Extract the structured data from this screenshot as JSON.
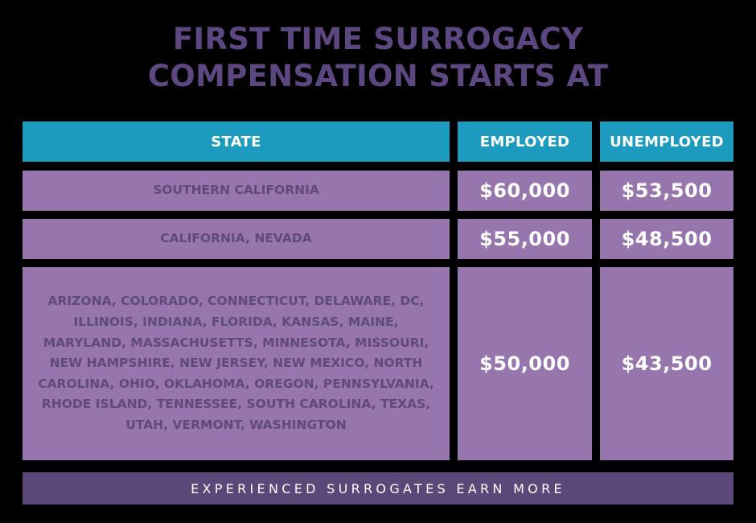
{
  "title": {
    "line1": "FIRST TIME SURROGACY",
    "line2": "COMPENSATION STARTS AT"
  },
  "table": {
    "headers": [
      "STATE",
      "EMPLOYED",
      "UNEMPLOYED"
    ],
    "rows": [
      {
        "state": "SOUTHERN CALIFORNIA",
        "employed": "$60,000",
        "unemployed": "$53,500"
      },
      {
        "state": "CALIFORNIA, NEVADA",
        "employed": "$55,000",
        "unemployed": "$48,500"
      },
      {
        "state": "ARIZONA, COLORADO, CONNECTICUT, DELAWARE, DC, ILLINOIS, INDIANA, FLORIDA, KANSAS, MAINE, MARYLAND, MASSACHUSETTS, MINNESOTA, MISSOURI, NEW HAMPSHIRE, NEW JERSEY, NEW MEXICO, NORTH CAROLINA, OHIO, OKLAHOMA, OREGON, PENNSYLVANIA, RHODE ISLAND, TENNESSEE, SOUTH CAROLINA, TEXAS, UTAH, VERMONT, WASHINGTON",
        "employed": "$50,000",
        "unemployed": "$43,500"
      }
    ]
  },
  "footer": {
    "label": "EXPERIENCED SURROGATES EARN MORE"
  },
  "colors": {
    "background": "#000000",
    "title": "#5c4780",
    "header": "#1d9bbf",
    "row": "#9776ae",
    "state_text": "#5f4a78",
    "footer": "#5c4779"
  }
}
